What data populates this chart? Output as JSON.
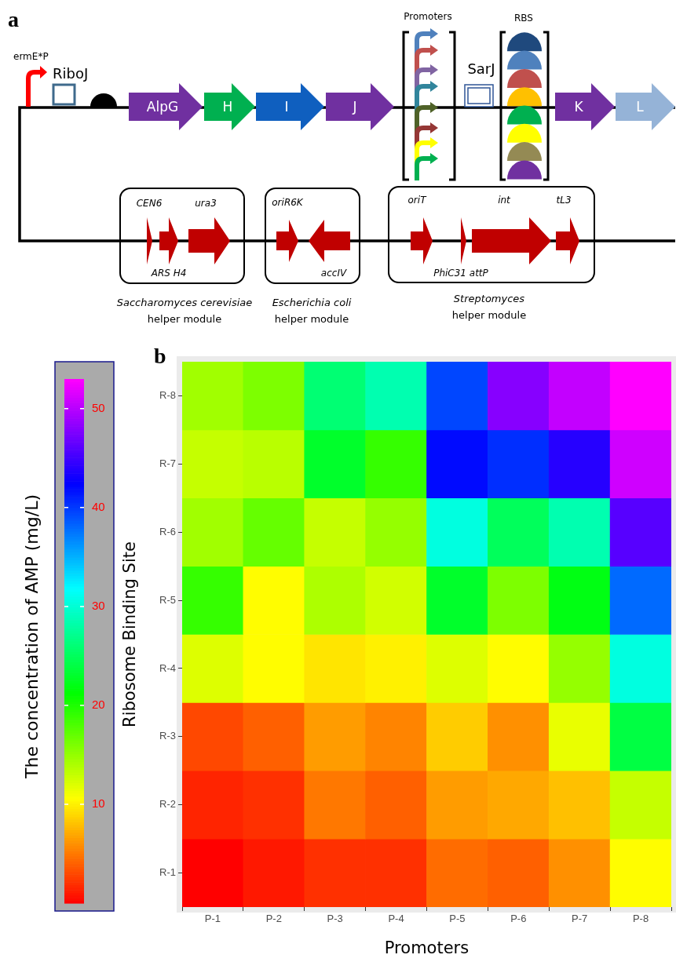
{
  "chart_data": [
    {
      "type": "other",
      "title": "a",
      "annotations": [
        "ermE*P",
        "RiboJ",
        "AlpG",
        "H",
        "I",
        "J",
        "Promoters",
        "SarJ",
        "RBS",
        "K",
        "L",
        "CEN6",
        "ura3",
        "ARS H4",
        "oriR6K",
        "accIV",
        "oriT",
        "int",
        "tL3",
        "PhiC31 attP",
        "Saccharomyces cerevisiae",
        "helper module",
        "Escherichia coli",
        "helper module",
        "Streptomyces",
        "helper module"
      ]
    },
    {
      "type": "heatmap",
      "title": "b",
      "xlabel": "Promoters",
      "ylabel": "Ribosome Binding Site",
      "clabel": "The concentration of AMP (mg/L)",
      "categories": [
        "P-1",
        "P-2",
        "P-3",
        "P-4",
        "P-5",
        "P-6",
        "P-7",
        "P-8"
      ],
      "y_categories": [
        "R-8",
        "R-7",
        "R-6",
        "R-5",
        "R-4",
        "R-3",
        "R-2",
        "R-1"
      ],
      "cells": [
        [
          14.5,
          16,
          26,
          28.5,
          39.5,
          48,
          50.5,
          53
        ],
        [
          13,
          13.5,
          23,
          19,
          42,
          40.5,
          44,
          51
        ],
        [
          14.5,
          17,
          13,
          15,
          30.5,
          25,
          28.5,
          46
        ],
        [
          19,
          10.5,
          14,
          12.5,
          23,
          16,
          22,
          38
        ],
        [
          12,
          10.5,
          9.5,
          10,
          12,
          10.5,
          15,
          30.5
        ],
        [
          3,
          4,
          6.5,
          5.5,
          8.5,
          6,
          11.5,
          24
        ],
        [
          1.5,
          2,
          5,
          4,
          6.5,
          7,
          8,
          13
        ],
        [
          0,
          1,
          2,
          2,
          4.5,
          4,
          6,
          10.5
        ]
      ],
      "clim": [
        0,
        53
      ],
      "cticks": [
        10,
        20,
        30,
        40,
        50
      ]
    }
  ]
}
